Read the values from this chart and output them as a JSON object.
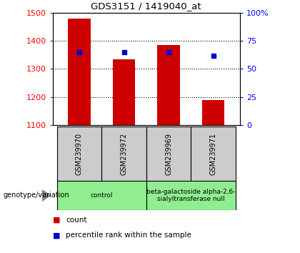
{
  "title": "GDS3151 / 1419040_at",
  "samples": [
    "GSM239970",
    "GSM239972",
    "GSM239969",
    "GSM239971"
  ],
  "counts": [
    1480,
    1335,
    1385,
    1190
  ],
  "percentiles": [
    65,
    65,
    65,
    62
  ],
  "ylim_left": [
    1100,
    1500
  ],
  "ylim_right": [
    0,
    100
  ],
  "yticks_left": [
    1100,
    1200,
    1300,
    1400,
    1500
  ],
  "yticks_right": [
    0,
    25,
    50,
    75,
    100
  ],
  "bar_color": "#cc0000",
  "dot_color": "#0000cc",
  "group_labels": [
    "control",
    "beta-galactoside alpha-2,6-\nsialyltransferase null"
  ],
  "group_ranges": [
    [
      0,
      2
    ],
    [
      2,
      4
    ]
  ],
  "group_color": "#90ee90",
  "genotype_label": "genotype/variation",
  "legend_count_label": "count",
  "legend_pct_label": "percentile rank within the sample",
  "bg_color": "#ffffff",
  "plot_bg_color": "#ffffff",
  "sample_bg_color": "#cccccc"
}
